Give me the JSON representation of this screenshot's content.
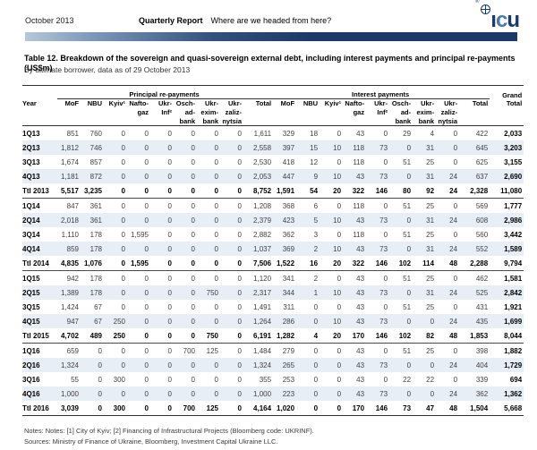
{
  "header": {
    "date": "October 2013",
    "report_name": "Quarterly Report",
    "tagline": "Where are we headed from here?",
    "logo": {
      "reg": "®",
      "i": "ı",
      "c": "c",
      "u": "u"
    },
    "accent_color": "#1c3a66"
  },
  "table": {
    "title": "Table 12. Breakdown of the sovereign and quasi-sovereign external debt, including interest payments and principal re-payments (US$m)",
    "subtitle": "By ultimate borrower, data as of 29 October 2013",
    "year_label": "Year",
    "groups": {
      "principal": "Principal re-payments",
      "interest": "Interest payments",
      "grand": "Grand"
    },
    "grand_total_label": "Total",
    "columns": [
      "MoF",
      "NBU",
      "Kyiv¹",
      "Nafto-\ngaz",
      "Ukr-\nInf²",
      "Osch-\nad-\nbank",
      "Ukr-\nexim-\nbank",
      "Ukr-\nzaliz-\nnytsia",
      "Total"
    ],
    "tint_color": "#e8eef6",
    "blocks": [
      {
        "rows": [
          {
            "year": "1Q13",
            "principal": [
              "851",
              "760",
              "0",
              "0",
              "0",
              "0",
              "0",
              "0",
              "1,611"
            ],
            "interest": [
              "329",
              "18",
              "0",
              "43",
              "0",
              "29",
              "4",
              "0",
              "422"
            ],
            "grand": "2,033",
            "ttl": false
          },
          {
            "year": "2Q13",
            "principal": [
              "1,812",
              "746",
              "0",
              "0",
              "0",
              "0",
              "0",
              "0",
              "2,558"
            ],
            "interest": [
              "397",
              "15",
              "10",
              "118",
              "73",
              "0",
              "31",
              "0",
              "645"
            ],
            "grand": "3,203",
            "ttl": false
          },
          {
            "year": "3Q13",
            "principal": [
              "1,674",
              "857",
              "0",
              "0",
              "0",
              "0",
              "0",
              "0",
              "2,530"
            ],
            "interest": [
              "418",
              "12",
              "0",
              "118",
              "0",
              "51",
              "25",
              "0",
              "625"
            ],
            "grand": "3,155",
            "ttl": false
          },
          {
            "year": "4Q13",
            "principal": [
              "1,181",
              "872",
              "0",
              "0",
              "0",
              "0",
              "0",
              "0",
              "2,053"
            ],
            "interest": [
              "447",
              "9",
              "10",
              "43",
              "73",
              "0",
              "31",
              "24",
              "637"
            ],
            "grand": "2,690",
            "ttl": false
          },
          {
            "year": "Ttl 2013",
            "principal": [
              "5,517",
              "3,235",
              "0",
              "0",
              "0",
              "0",
              "0",
              "0",
              "8,752"
            ],
            "interest": [
              "1,591",
              "54",
              "20",
              "322",
              "146",
              "80",
              "92",
              "24",
              "2,328"
            ],
            "grand": "11,080",
            "ttl": true
          }
        ]
      },
      {
        "rows": [
          {
            "year": "1Q14",
            "principal": [
              "847",
              "361",
              "0",
              "0",
              "0",
              "0",
              "0",
              "0",
              "1,208"
            ],
            "interest": [
              "368",
              "6",
              "0",
              "118",
              "0",
              "51",
              "25",
              "0",
              "569"
            ],
            "grand": "1,777",
            "ttl": false
          },
          {
            "year": "2Q14",
            "principal": [
              "2,018",
              "361",
              "0",
              "0",
              "0",
              "0",
              "0",
              "0",
              "2,379"
            ],
            "interest": [
              "423",
              "5",
              "10",
              "43",
              "73",
              "0",
              "31",
              "24",
              "608"
            ],
            "grand": "2,986",
            "ttl": false
          },
          {
            "year": "3Q14",
            "principal": [
              "1,110",
              "178",
              "0",
              "1,595",
              "0",
              "0",
              "0",
              "0",
              "2,882"
            ],
            "interest": [
              "362",
              "3",
              "0",
              "118",
              "0",
              "51",
              "25",
              "0",
              "560"
            ],
            "grand": "3,442",
            "ttl": false
          },
          {
            "year": "4Q14",
            "principal": [
              "859",
              "178",
              "0",
              "0",
              "0",
              "0",
              "0",
              "0",
              "1,037"
            ],
            "interest": [
              "369",
              "2",
              "10",
              "43",
              "73",
              "0",
              "31",
              "24",
              "552"
            ],
            "grand": "1,589",
            "ttl": false
          },
          {
            "year": "Ttl 2014",
            "principal": [
              "4,835",
              "1,076",
              "0",
              "1,595",
              "0",
              "0",
              "0",
              "0",
              "7,506"
            ],
            "interest": [
              "1,522",
              "16",
              "20",
              "322",
              "146",
              "102",
              "114",
              "48",
              "2,288"
            ],
            "grand": "9,794",
            "ttl": true
          }
        ]
      },
      {
        "rows": [
          {
            "year": "1Q15",
            "principal": [
              "942",
              "178",
              "0",
              "0",
              "0",
              "0",
              "0",
              "0",
              "1,120"
            ],
            "interest": [
              "341",
              "2",
              "0",
              "43",
              "0",
              "51",
              "25",
              "0",
              "462"
            ],
            "grand": "1,581",
            "ttl": false
          },
          {
            "year": "2Q15",
            "principal": [
              "1,389",
              "178",
              "0",
              "0",
              "0",
              "0",
              "750",
              "0",
              "2,317"
            ],
            "interest": [
              "344",
              "1",
              "10",
              "43",
              "73",
              "0",
              "31",
              "24",
              "525"
            ],
            "grand": "2,842",
            "ttl": false
          },
          {
            "year": "3Q15",
            "principal": [
              "1,424",
              "67",
              "0",
              "0",
              "0",
              "0",
              "0",
              "0",
              "1,491"
            ],
            "interest": [
              "311",
              "0",
              "0",
              "43",
              "0",
              "51",
              "25",
              "0",
              "431"
            ],
            "grand": "1,921",
            "ttl": false
          },
          {
            "year": "4Q15",
            "principal": [
              "947",
              "67",
              "250",
              "0",
              "0",
              "0",
              "0",
              "0",
              "1,264"
            ],
            "interest": [
              "286",
              "0",
              "10",
              "43",
              "73",
              "0",
              "0",
              "24",
              "435"
            ],
            "grand": "1,699",
            "ttl": false
          },
          {
            "year": "Ttl 2015",
            "principal": [
              "4,702",
              "489",
              "250",
              "0",
              "0",
              "0",
              "750",
              "0",
              "6,191"
            ],
            "interest": [
              "1,282",
              "4",
              "20",
              "170",
              "146",
              "102",
              "82",
              "48",
              "1,853"
            ],
            "grand": "8,044",
            "ttl": true
          }
        ]
      },
      {
        "rows": [
          {
            "year": "1Q16",
            "principal": [
              "659",
              "0",
              "0",
              "0",
              "0",
              "700",
              "125",
              "0",
              "1,484"
            ],
            "interest": [
              "279",
              "0",
              "0",
              "43",
              "0",
              "51",
              "25",
              "0",
              "398"
            ],
            "grand": "1,882",
            "ttl": false
          },
          {
            "year": "2Q16",
            "principal": [
              "1,324",
              "0",
              "0",
              "0",
              "0",
              "0",
              "0",
              "0",
              "1,324"
            ],
            "interest": [
              "265",
              "0",
              "0",
              "43",
              "73",
              "0",
              "0",
              "24",
              "404"
            ],
            "grand": "1,729",
            "ttl": false
          },
          {
            "year": "3Q16",
            "principal": [
              "55",
              "0",
              "300",
              "0",
              "0",
              "0",
              "0",
              "0",
              "355"
            ],
            "interest": [
              "253",
              "0",
              "0",
              "43",
              "0",
              "22",
              "22",
              "0",
              "339"
            ],
            "grand": "694",
            "ttl": false
          },
          {
            "year": "4Q16",
            "principal": [
              "1,000",
              "0",
              "0",
              "0",
              "0",
              "0",
              "0",
              "0",
              "1,000"
            ],
            "interest": [
              "223",
              "0",
              "0",
              "43",
              "73",
              "0",
              "0",
              "24",
              "362"
            ],
            "grand": "1,362",
            "ttl": false
          },
          {
            "year": "Ttl 2016",
            "principal": [
              "3,039",
              "0",
              "300",
              "0",
              "0",
              "700",
              "125",
              "0",
              "4,164"
            ],
            "interest": [
              "1,020",
              "0",
              "0",
              "170",
              "146",
              "73",
              "47",
              "48",
              "1,504"
            ],
            "grand": "5,668",
            "ttl": true
          }
        ]
      }
    ]
  },
  "footer": {
    "notes": "Notes: Notes: [1] City of Kyiv; [2] Financing of Infrastructural Projects (Bloomberg code: UKRINF).",
    "sources": "Sources: Ministry of Finance of Ukraine, Bloomberg, Investment Capital Ukraine LLC."
  }
}
